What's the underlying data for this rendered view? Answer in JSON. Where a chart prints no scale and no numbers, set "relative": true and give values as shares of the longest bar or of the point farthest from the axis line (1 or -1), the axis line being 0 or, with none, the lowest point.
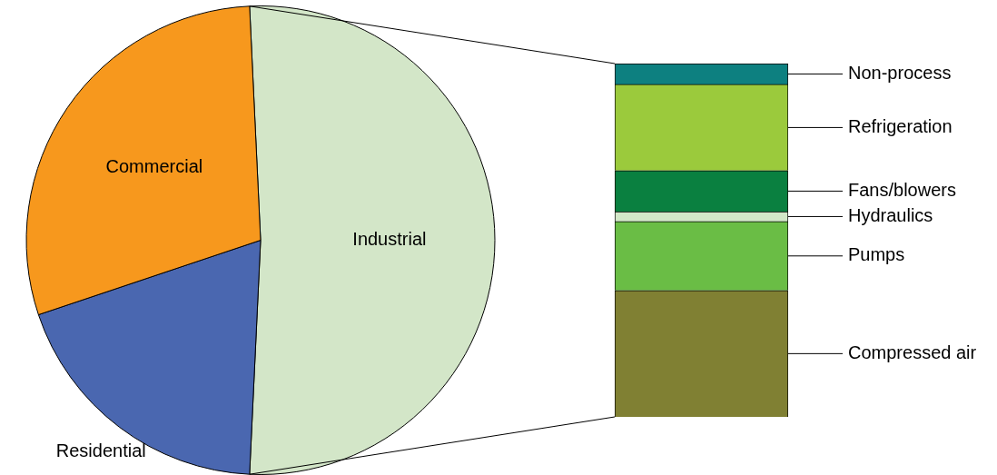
{
  "chart_data": [
    {
      "type": "pie",
      "categories": [
        "Industrial",
        "Residential",
        "Commercial"
      ],
      "values": [
        51.5,
        19.1,
        29.4
      ],
      "colors": [
        "#d3e6c8",
        "#4a67b0",
        "#f7981d"
      ]
    },
    {
      "type": "bar",
      "stacked": true,
      "relative": true,
      "tick_labels": false,
      "categories": [
        null
      ],
      "series": [
        {
          "name": "Compressed air",
          "color": "#808033",
          "values": [
            0.358
          ]
        },
        {
          "name": "Pumps",
          "color": "#6abd45",
          "values": [
            0.195
          ]
        },
        {
          "name": "Hydraulics",
          "color": "#d3e8c8",
          "values": [
            0.028
          ]
        },
        {
          "name": "Fans/blowers",
          "color": "#0a8040",
          "values": [
            0.116
          ]
        },
        {
          "name": "Refrigeration",
          "color": "#9bca3c",
          "values": [
            0.244
          ]
        },
        {
          "name": "Non-process",
          "color": "#0d8080",
          "values": [
            0.059
          ]
        }
      ]
    }
  ]
}
